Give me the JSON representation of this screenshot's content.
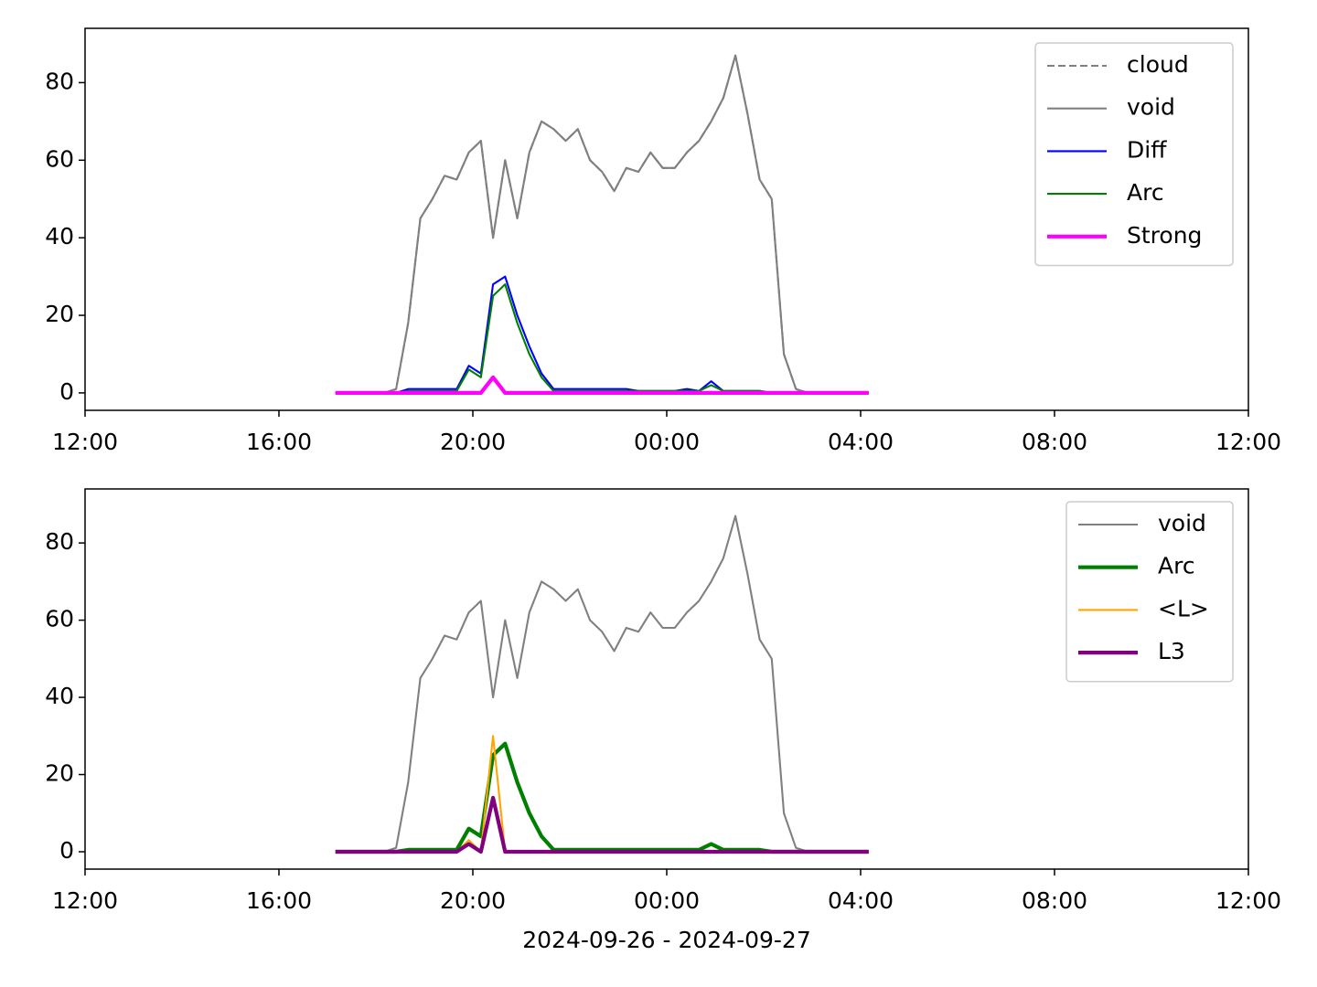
{
  "chart_data": [
    {
      "type": "line",
      "x": [
        "17:10",
        "17:25",
        "17:40",
        "17:55",
        "18:10",
        "18:25",
        "18:40",
        "18:55",
        "19:10",
        "19:25",
        "19:40",
        "19:55",
        "20:10",
        "20:25",
        "20:40",
        "20:55",
        "21:10",
        "21:25",
        "21:40",
        "21:55",
        "22:10",
        "22:25",
        "22:40",
        "22:55",
        "23:10",
        "23:25",
        "23:40",
        "23:55",
        "00:10",
        "00:25",
        "00:40",
        "00:55",
        "01:10",
        "01:25",
        "01:40",
        "01:55",
        "02:10",
        "02:25",
        "02:40",
        "02:55",
        "03:10",
        "03:25",
        "03:40",
        "03:55",
        "04:10"
      ],
      "series": [
        {
          "name": "cloud",
          "color": "#808080",
          "linestyle": "dashed",
          "linewidth": 1.5,
          "values": [
            0,
            0,
            0,
            0,
            0,
            1,
            18,
            45,
            50,
            56,
            55,
            62,
            65,
            40,
            60,
            45,
            62,
            70,
            68,
            65,
            68,
            60,
            57,
            52,
            58,
            57,
            62,
            58,
            58,
            62,
            65,
            70,
            76,
            87,
            72,
            55,
            50,
            10,
            1,
            0,
            0,
            0,
            0,
            0,
            0
          ]
        },
        {
          "name": "void",
          "color": "#808080",
          "linewidth": 1.5,
          "values": [
            0,
            0,
            0,
            0,
            0,
            1,
            18,
            45,
            50,
            56,
            55,
            62,
            65,
            40,
            60,
            45,
            62,
            70,
            68,
            65,
            68,
            60,
            57,
            52,
            58,
            57,
            62,
            58,
            58,
            62,
            65,
            70,
            76,
            87,
            72,
            55,
            50,
            10,
            1,
            0,
            0,
            0,
            0,
            0,
            0
          ]
        },
        {
          "name": "Diff",
          "color": "#0000ff",
          "linewidth": 1.5,
          "values": [
            0,
            0,
            0,
            0,
            0,
            0,
            1,
            1,
            1,
            1,
            1,
            7,
            5,
            28,
            30,
            20,
            12,
            5,
            1,
            1,
            1,
            1,
            1,
            1,
            1,
            0.5,
            0.5,
            0.5,
            0.5,
            1,
            0.5,
            3,
            0.5,
            0.5,
            0.5,
            0.5,
            0,
            0,
            0,
            0,
            0,
            0,
            0,
            0,
            0
          ]
        },
        {
          "name": "Arc",
          "color": "#008000",
          "linewidth": 1.5,
          "values": [
            0,
            0,
            0,
            0,
            0,
            0,
            0.5,
            0.5,
            0.5,
            0.5,
            0.5,
            6,
            4,
            25,
            28,
            18,
            10,
            4,
            0.5,
            0.5,
            0.5,
            0.5,
            0.5,
            0.5,
            0.5,
            0.5,
            0.5,
            0.5,
            0.5,
            0.5,
            0.5,
            2,
            0.5,
            0.5,
            0.5,
            0.5,
            0,
            0,
            0,
            0,
            0,
            0,
            0,
            0,
            0
          ]
        },
        {
          "name": "Strong",
          "color": "#ff00ff",
          "linewidth": 3,
          "values": [
            0,
            0,
            0,
            0,
            0,
            0,
            0,
            0,
            0,
            0,
            0,
            0,
            0,
            4,
            0,
            0,
            0,
            0,
            0,
            0,
            0,
            0,
            0,
            0,
            0,
            0,
            0,
            0,
            0,
            0,
            0,
            0,
            0,
            0,
            0,
            0,
            0,
            0,
            0,
            0,
            0,
            0,
            0,
            0,
            0
          ]
        }
      ],
      "xlim": [
        "12:00",
        "12:00"
      ],
      "xticks": [
        "12:00",
        "16:00",
        "20:00",
        "00:00",
        "04:00",
        "08:00",
        "12:00"
      ],
      "ylim": [
        -4.5,
        94
      ],
      "yticks": [
        0,
        20,
        40,
        60,
        80
      ],
      "legend": "upper right"
    },
    {
      "type": "line",
      "x": [
        "17:10",
        "17:25",
        "17:40",
        "17:55",
        "18:10",
        "18:25",
        "18:40",
        "18:55",
        "19:10",
        "19:25",
        "19:40",
        "19:55",
        "20:10",
        "20:25",
        "20:40",
        "20:55",
        "21:10",
        "21:25",
        "21:40",
        "21:55",
        "22:10",
        "22:25",
        "22:40",
        "22:55",
        "23:10",
        "23:25",
        "23:40",
        "23:55",
        "00:10",
        "00:25",
        "00:40",
        "00:55",
        "01:10",
        "01:25",
        "01:40",
        "01:55",
        "02:10",
        "02:25",
        "02:40",
        "02:55",
        "03:10",
        "03:25",
        "03:40",
        "03:55",
        "04:10"
      ],
      "series": [
        {
          "name": "void",
          "color": "#808080",
          "linewidth": 1.5,
          "values": [
            0,
            0,
            0,
            0,
            0,
            1,
            18,
            45,
            50,
            56,
            55,
            62,
            65,
            40,
            60,
            45,
            62,
            70,
            68,
            65,
            68,
            60,
            57,
            52,
            58,
            57,
            62,
            58,
            58,
            62,
            65,
            70,
            76,
            87,
            72,
            55,
            50,
            10,
            1,
            0,
            0,
            0,
            0,
            0,
            0
          ]
        },
        {
          "name": "Arc",
          "color": "#008000",
          "linewidth": 3,
          "values": [
            0,
            0,
            0,
            0,
            0,
            0,
            0.5,
            0.5,
            0.5,
            0.5,
            0.5,
            6,
            4,
            25,
            28,
            18,
            10,
            4,
            0.5,
            0.5,
            0.5,
            0.5,
            0.5,
            0.5,
            0.5,
            0.5,
            0.5,
            0.5,
            0.5,
            0.5,
            0.5,
            2,
            0.5,
            0.5,
            0.5,
            0.5,
            0,
            0,
            0,
            0,
            0,
            0,
            0,
            0,
            0
          ]
        },
        {
          "name": "<L>",
          "color": "#ffa500",
          "linewidth": 1.5,
          "values": [
            0,
            0,
            0,
            0,
            0,
            0,
            0,
            0,
            0,
            0,
            0,
            3,
            0,
            30,
            0,
            0,
            0,
            0,
            0,
            0,
            0,
            0,
            0,
            0,
            0,
            0,
            0,
            0,
            0,
            0,
            0,
            0,
            0,
            0,
            0,
            0,
            0,
            0,
            0,
            0,
            0,
            0,
            0,
            0,
            0
          ]
        },
        {
          "name": "L3",
          "color": "#800080",
          "linewidth": 3,
          "values": [
            0,
            0,
            0,
            0,
            0,
            0,
            0,
            0,
            0,
            0,
            0,
            2,
            0,
            14,
            0,
            0,
            0,
            0,
            0,
            0,
            0,
            0,
            0,
            0,
            0,
            0,
            0,
            0,
            0,
            0,
            0,
            0,
            0,
            0,
            0,
            0,
            0,
            0,
            0,
            0,
            0,
            0,
            0,
            0,
            0
          ]
        }
      ],
      "xlim": [
        "12:00",
        "12:00"
      ],
      "xticks": [
        "12:00",
        "16:00",
        "20:00",
        "00:00",
        "04:00",
        "08:00",
        "12:00"
      ],
      "ylim": [
        -4.5,
        94
      ],
      "yticks": [
        0,
        20,
        40,
        60,
        80
      ],
      "xlabel": "2024-09-26 - 2024-09-27",
      "legend": "upper right"
    }
  ]
}
